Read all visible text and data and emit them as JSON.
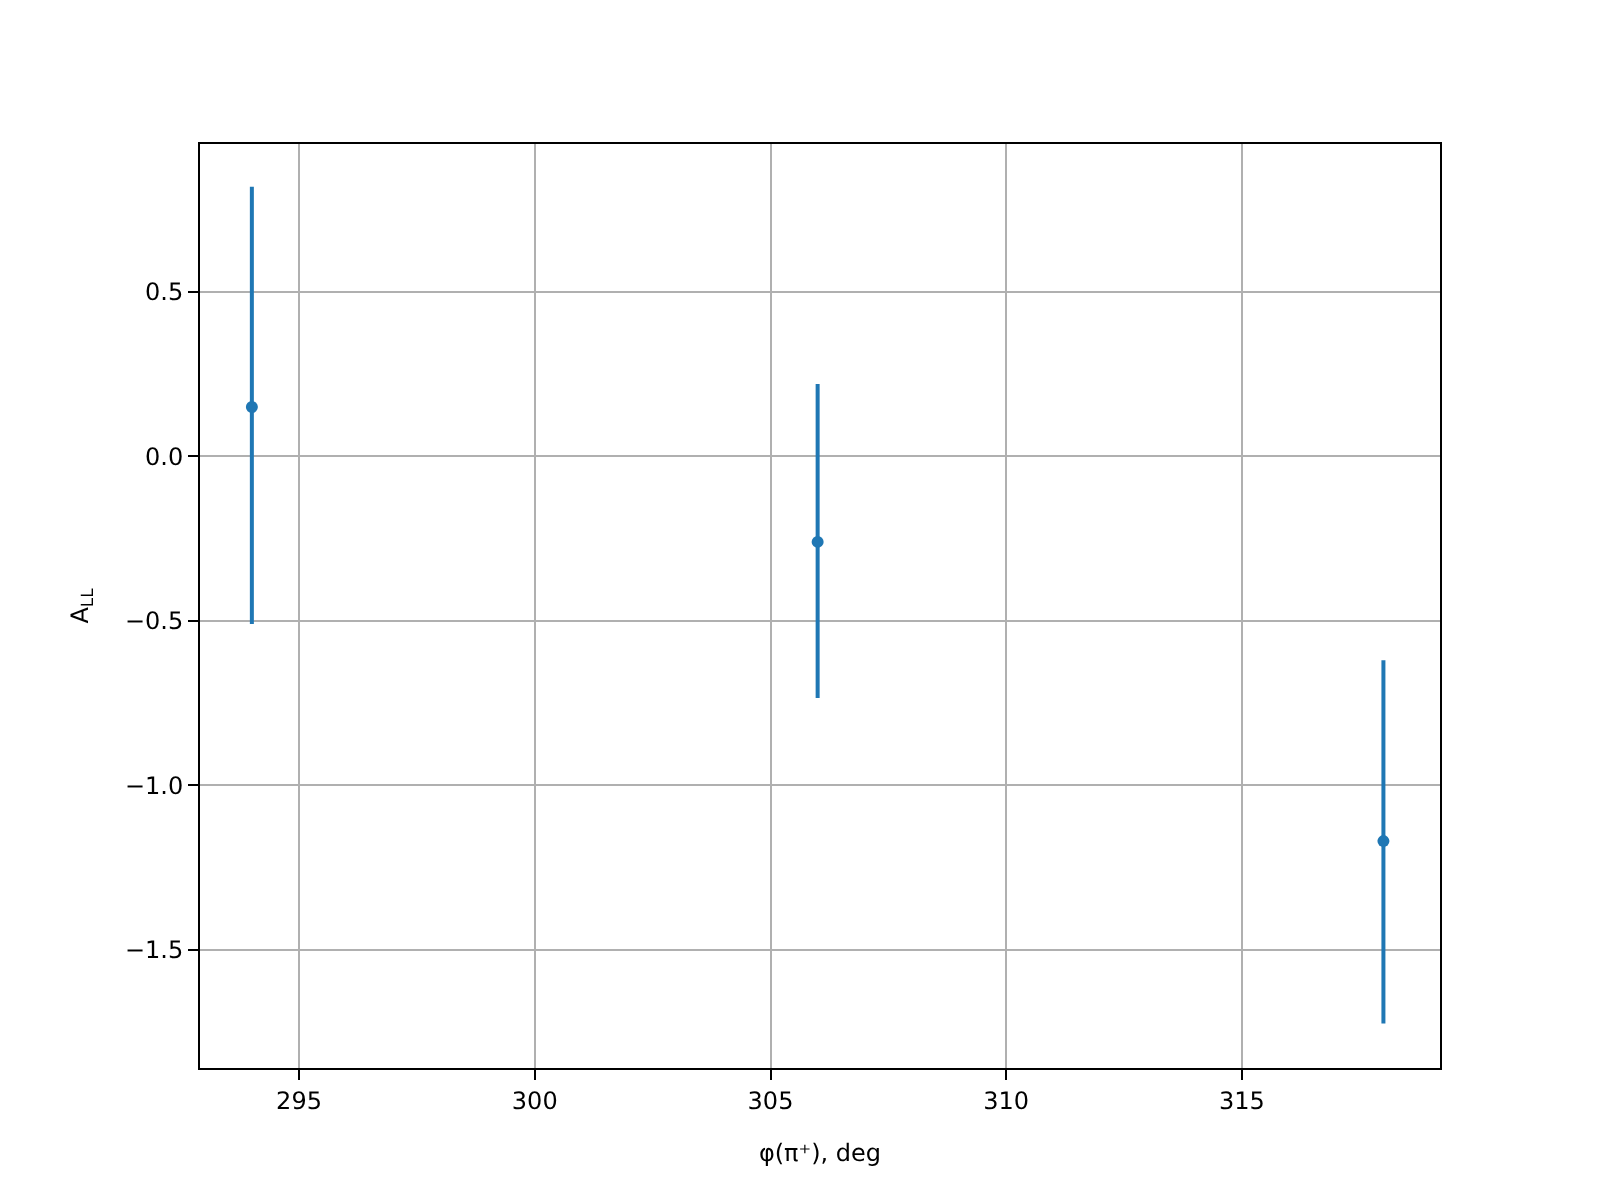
{
  "chart_data": {
    "type": "scatter",
    "xlabel": "φ(π⁺), deg",
    "ylabel": "A$_{LL}$",
    "x": [
      294,
      306,
      318
    ],
    "series": [
      {
        "color": "#1f77b4",
        "values": [
          0.15,
          -0.26,
          -1.17
        ],
        "errors": [
          [
            -0.51,
            0.82
          ],
          [
            -0.735,
            0.22
          ],
          [
            -1.725,
            -0.62
          ]
        ]
      }
    ],
    "xlim": [
      292.9,
      319.2
    ],
    "ylim": [
      -1.86,
      0.95
    ],
    "xticks": [
      295,
      300,
      305,
      310,
      315
    ],
    "yticks": [
      {
        "value": -1.5,
        "label": "−1.5"
      },
      {
        "value": -1.0,
        "label": "−1.0"
      },
      {
        "value": -0.5,
        "label": "−0.5"
      },
      {
        "value": 0.0,
        "label": "0.0"
      },
      {
        "value": 0.5,
        "label": "0.5"
      }
    ],
    "grid": true,
    "marker": "circle",
    "legend": false
  }
}
